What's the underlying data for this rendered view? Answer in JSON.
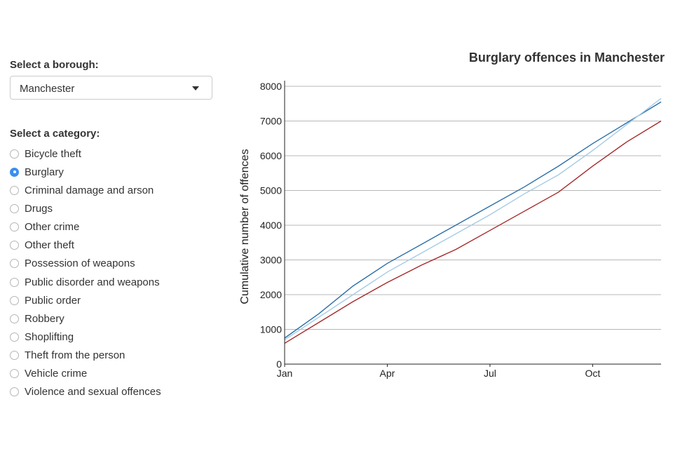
{
  "sidebar": {
    "borough_label": "Select a borough:",
    "borough_value": "Manchester",
    "category_label": "Select a category:",
    "categories": [
      {
        "label": "Bicycle theft",
        "selected": false
      },
      {
        "label": "Burglary",
        "selected": true
      },
      {
        "label": "Criminal damage and arson",
        "selected": false
      },
      {
        "label": "Drugs",
        "selected": false
      },
      {
        "label": "Other crime",
        "selected": false
      },
      {
        "label": "Other theft",
        "selected": false
      },
      {
        "label": "Possession of weapons",
        "selected": false
      },
      {
        "label": "Public disorder and weapons",
        "selected": false
      },
      {
        "label": "Public order",
        "selected": false
      },
      {
        "label": "Robbery",
        "selected": false
      },
      {
        "label": "Shoplifting",
        "selected": false
      },
      {
        "label": "Theft from the person",
        "selected": false
      },
      {
        "label": "Vehicle crime",
        "selected": false
      },
      {
        "label": "Violence and sexual offences",
        "selected": false
      }
    ]
  },
  "chart_data": {
    "type": "line",
    "title": "Burglary offences in Manchester",
    "ylabel": "Cumulative number of offences",
    "xlabel": "",
    "x": [
      1,
      2,
      3,
      4,
      5,
      6,
      7,
      8,
      9,
      10,
      11,
      12
    ],
    "xtick_values": [
      1,
      4,
      7,
      10
    ],
    "xtick_labels": [
      "Jan",
      "Apr",
      "Jul",
      "Oct"
    ],
    "xlim": [
      1,
      12
    ],
    "ylim": [
      0,
      8000
    ],
    "yticks": [
      0,
      1000,
      2000,
      3000,
      4000,
      5000,
      6000,
      7000,
      8000
    ],
    "grid": "horizontal",
    "series": [
      {
        "color": "#2c6fa8",
        "values": [
          750,
          1450,
          2250,
          2900,
          3450,
          4000,
          4550,
          5100,
          5700,
          6350,
          6950,
          7550
        ]
      },
      {
        "color": "#a6cbe6",
        "values": [
          700,
          1350,
          2000,
          2650,
          3200,
          3750,
          4300,
          4900,
          5450,
          6150,
          6900,
          7650
        ]
      },
      {
        "color": "#a52a2a",
        "values": [
          600,
          1200,
          1800,
          2350,
          2850,
          3300,
          3850,
          4400,
          4950,
          5700,
          6400,
          7000
        ]
      }
    ]
  }
}
